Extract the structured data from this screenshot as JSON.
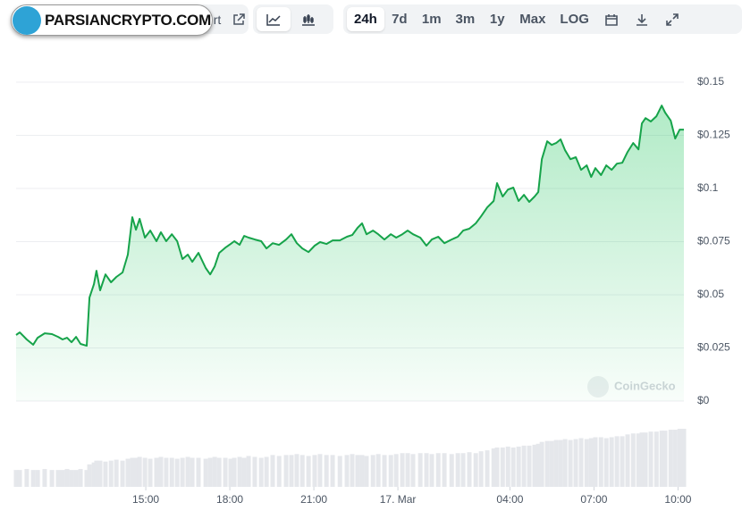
{
  "toolbar": {
    "partial_label": "rt",
    "ranges": [
      "24h",
      "7d",
      "1m",
      "3m",
      "1y",
      "Max"
    ],
    "scale_button": "LOG"
  },
  "watermarks": {
    "site": "PARSIANCRYPTO.COM",
    "source": "CoinGecko"
  },
  "chart_data": {
    "type": "area",
    "color": "#16a34a",
    "grid": true,
    "x": [
      10.37,
      10.5,
      10.75,
      10.98,
      11.14,
      11.39,
      11.65,
      11.87,
      12.03,
      12.19,
      12.35,
      12.51,
      12.67,
      12.89,
      12.99,
      13.15,
      13.24,
      13.37,
      13.56,
      13.76,
      13.95,
      14.17,
      14.36,
      14.52,
      14.65,
      14.78,
      14.97,
      15.16,
      15.38,
      15.54,
      15.73,
      15.93,
      16.12,
      16.31,
      16.5,
      16.66,
      16.88,
      17.14,
      17.3,
      17.46,
      17.62,
      17.84,
      18.03,
      18.16,
      18.35,
      18.51,
      18.67,
      18.89,
      19.12,
      19.31,
      19.53,
      19.76,
      20.01,
      20.2,
      20.39,
      20.59,
      20.81,
      21.03,
      21.22,
      21.45,
      21.67,
      21.93,
      22.18,
      22.37,
      22.56,
      22.72,
      22.88,
      23.11,
      23.3,
      23.52,
      23.75,
      23.94,
      24.16,
      24.35,
      24.54,
      24.8,
      25.02,
      25.21,
      25.44,
      25.66,
      25.92,
      26.14,
      26.33,
      26.55,
      26.78,
      26.97,
      27.19,
      27.42,
      27.54,
      27.74,
      27.93,
      28.12,
      28.31,
      28.5,
      28.69,
      28.88,
      29.01,
      29.14,
      29.33,
      29.49,
      29.65,
      29.81,
      29.97,
      30.16,
      30.35,
      30.54,
      30.74,
      30.9,
      31.05,
      31.25,
      31.44,
      31.63,
      31.82,
      32.01,
      32.2,
      32.4,
      32.59,
      32.71,
      32.84,
      33.03,
      33.23,
      33.42,
      33.54,
      33.74,
      33.9,
      34.06,
      34.21
    ],
    "values": [
      0.0311,
      0.0323,
      0.029,
      0.0265,
      0.0298,
      0.0319,
      0.0315,
      0.0302,
      0.029,
      0.0298,
      0.0277,
      0.0302,
      0.0269,
      0.026,
      0.0487,
      0.055,
      0.0613,
      0.0521,
      0.0596,
      0.0559,
      0.0584,
      0.0605,
      0.0689,
      0.0865,
      0.0806,
      0.0857,
      0.0769,
      0.0802,
      0.0752,
      0.0794,
      0.0752,
      0.0785,
      0.0752,
      0.0668,
      0.0689,
      0.0655,
      0.0697,
      0.0626,
      0.0596,
      0.0634,
      0.0697,
      0.0722,
      0.0739,
      0.0752,
      0.0735,
      0.0777,
      0.0769,
      0.076,
      0.0752,
      0.0718,
      0.0743,
      0.0735,
      0.076,
      0.0785,
      0.0743,
      0.0718,
      0.0701,
      0.0731,
      0.0748,
      0.0739,
      0.0756,
      0.0756,
      0.0773,
      0.0781,
      0.0815,
      0.0836,
      0.0785,
      0.0802,
      0.0785,
      0.076,
      0.0785,
      0.0769,
      0.0785,
      0.0802,
      0.0785,
      0.0769,
      0.0731,
      0.076,
      0.0773,
      0.0743,
      0.076,
      0.0773,
      0.0802,
      0.0811,
      0.0836,
      0.0869,
      0.0911,
      0.0941,
      0.1025,
      0.0962,
      0.0995,
      0.1004,
      0.0941,
      0.097,
      0.0937,
      0.0962,
      0.0983,
      0.1138,
      0.1222,
      0.1205,
      0.1214,
      0.1231,
      0.118,
      0.1138,
      0.1147,
      0.1088,
      0.1109,
      0.1054,
      0.1096,
      0.1063,
      0.1109,
      0.1088,
      0.1117,
      0.1121,
      0.1172,
      0.1214,
      0.1184,
      0.1306,
      0.1331,
      0.1315,
      0.134,
      0.139,
      0.1357,
      0.1319,
      0.1235,
      0.1277,
      0.1277
    ],
    "volume": {
      "color": "#e5e7eb",
      "values": [
        18,
        18,
        19,
        18,
        18,
        19,
        18,
        18,
        18,
        19,
        18,
        18,
        19,
        18,
        24,
        26,
        28,
        28,
        27,
        28,
        29,
        28,
        30,
        31,
        31,
        32,
        31,
        30,
        31,
        32,
        31,
        31,
        30,
        31,
        32,
        31,
        31,
        30,
        31,
        32,
        31,
        31,
        30,
        31,
        32,
        31,
        33,
        32,
        31,
        32,
        34,
        33,
        34,
        34,
        35,
        34,
        33,
        34,
        35,
        34,
        34,
        33,
        34,
        35,
        34,
        34,
        33,
        34,
        35,
        34,
        34,
        35,
        36,
        36,
        35,
        36,
        36,
        35,
        36,
        36,
        35,
        36,
        36,
        37,
        36,
        38,
        39,
        41,
        42,
        42,
        43,
        42,
        43,
        44,
        44,
        45,
        46,
        48,
        49,
        49,
        50,
        50,
        51,
        50,
        51,
        52,
        51,
        52,
        53,
        53,
        52,
        53,
        54,
        54,
        56,
        57,
        57,
        58,
        58,
        59,
        59,
        60,
        60,
        61,
        61,
        62,
        62
      ]
    },
    "xlim": [
      10.37,
      34.21
    ],
    "xticks": [
      {
        "value": 15,
        "label": "15:00"
      },
      {
        "value": 18,
        "label": "18:00"
      },
      {
        "value": 21,
        "label": "21:00"
      },
      {
        "value": 24,
        "label": "17. Mar"
      },
      {
        "value": 28,
        "label": "04:00"
      },
      {
        "value": 31,
        "label": "07:00"
      },
      {
        "value": 34,
        "label": "10:00"
      }
    ],
    "ylim": [
      0,
      0.15
    ],
    "yticks": [
      {
        "value": 0,
        "label": "$0"
      },
      {
        "value": 0.025,
        "label": "$0.025"
      },
      {
        "value": 0.05,
        "label": "$0.05"
      },
      {
        "value": 0.075,
        "label": "$0.075"
      },
      {
        "value": 0.1,
        "label": "$0.1"
      },
      {
        "value": 0.125,
        "label": "$0.125"
      },
      {
        "value": 0.15,
        "label": "$0.15"
      }
    ]
  }
}
